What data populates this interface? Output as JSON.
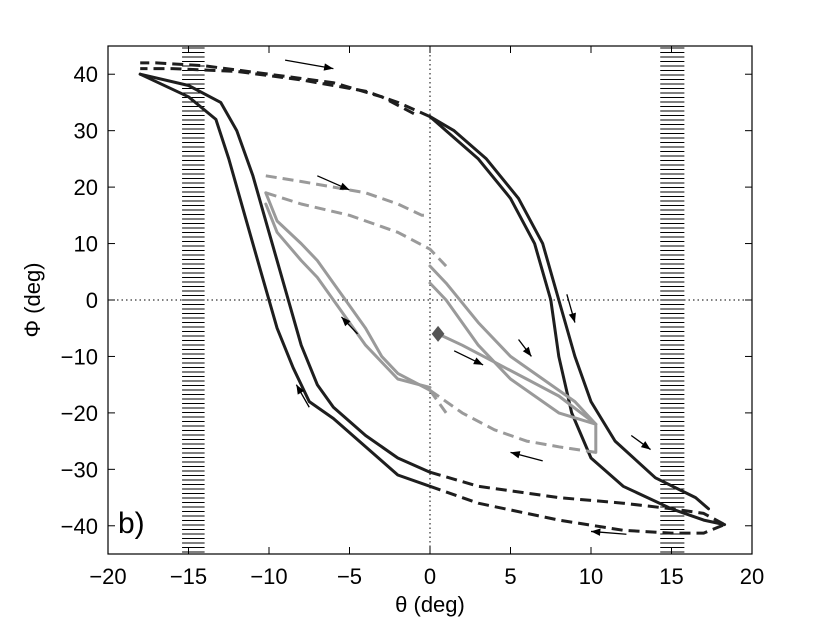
{
  "chart_data": {
    "type": "line",
    "title": "",
    "panel_label": "b)",
    "xlabel": "θ (deg)",
    "ylabel": "Φ (deg)",
    "xlim": [
      -20,
      20
    ],
    "ylim": [
      -45,
      45
    ],
    "xticks": [
      -20,
      -15,
      -10,
      -5,
      0,
      5,
      10,
      15,
      20
    ],
    "yticks": [
      40,
      30,
      20,
      10,
      0,
      -10,
      -20,
      -30,
      -40
    ],
    "xtick_labels": [
      "−20",
      "−15",
      "−10",
      "−5",
      "0",
      "5",
      "10",
      "15",
      "20"
    ],
    "ytick_labels": [
      "40",
      "30",
      "20",
      "10",
      "0",
      "−10",
      "−20",
      "−30",
      "−40"
    ],
    "zero_lines": true,
    "hatched_bands": [
      {
        "x_from": -15.4,
        "x_to": -14.0
      },
      {
        "x_from": 14.3,
        "x_to": 15.8
      }
    ],
    "colors": {
      "outer": "#1e1e1e",
      "inner": "#9a9a9a",
      "axis": "#000000"
    },
    "series": [
      {
        "name": "outer-loop-solid-a",
        "color": "#1e1e1e",
        "style": "solid",
        "points": [
          [
            -18,
            40
          ],
          [
            -15,
            38
          ],
          [
            -13,
            35
          ],
          [
            -12,
            30
          ],
          [
            -11,
            22
          ],
          [
            -10,
            12
          ],
          [
            -9,
            2
          ],
          [
            -8,
            -8
          ],
          [
            -7,
            -15
          ],
          [
            -6,
            -19
          ],
          [
            -4,
            -24
          ],
          [
            -2,
            -28
          ],
          [
            0,
            -30.5
          ]
        ]
      },
      {
        "name": "outer-loop-solid-b",
        "color": "#1e1e1e",
        "style": "solid",
        "points": [
          [
            -18,
            40
          ],
          [
            -15,
            36
          ],
          [
            -13.3,
            32
          ],
          [
            -12.5,
            25
          ],
          [
            -11.5,
            15
          ],
          [
            -10.5,
            5
          ],
          [
            -9.5,
            -5
          ],
          [
            -8.5,
            -12
          ],
          [
            -7.5,
            -18
          ],
          [
            -6,
            -21
          ],
          [
            -4,
            -26
          ],
          [
            -2,
            -31
          ],
          [
            0,
            -33
          ]
        ]
      },
      {
        "name": "outer-loop-dashed-bottom-a",
        "color": "#1e1e1e",
        "style": "dashed",
        "points": [
          [
            0,
            -30.5
          ],
          [
            3,
            -33
          ],
          [
            8,
            -35
          ],
          [
            12,
            -36
          ],
          [
            15,
            -37
          ],
          [
            17,
            -37.8
          ],
          [
            18.3,
            -39.8
          ]
        ]
      },
      {
        "name": "outer-loop-dashed-bottom-b",
        "color": "#1e1e1e",
        "style": "dashed",
        "points": [
          [
            0,
            -33
          ],
          [
            3,
            -36
          ],
          [
            8,
            -39
          ],
          [
            12,
            -40.8
          ],
          [
            15,
            -41.3
          ],
          [
            17,
            -41.3
          ],
          [
            18.3,
            -39.8
          ]
        ]
      },
      {
        "name": "outer-loop-solid-c",
        "color": "#1e1e1e",
        "style": "solid",
        "points": [
          [
            18.3,
            -39.8
          ],
          [
            17,
            -39
          ],
          [
            15,
            -37
          ],
          [
            12,
            -33
          ],
          [
            10,
            -28
          ],
          [
            8.8,
            -20
          ],
          [
            8,
            -10
          ],
          [
            7.5,
            0
          ],
          [
            6.5,
            10
          ],
          [
            5,
            18
          ],
          [
            3,
            25
          ],
          [
            1,
            30
          ],
          [
            0,
            32.5
          ]
        ]
      },
      {
        "name": "outer-loop-solid-d",
        "color": "#1e1e1e",
        "style": "solid",
        "points": [
          [
            17.3,
            -37
          ],
          [
            16.5,
            -35
          ],
          [
            14,
            -31.5
          ],
          [
            11.5,
            -25
          ],
          [
            10,
            -18
          ],
          [
            9,
            -10
          ],
          [
            8,
            0
          ],
          [
            7,
            10
          ],
          [
            5.5,
            18
          ],
          [
            3.5,
            25
          ],
          [
            1.5,
            30
          ],
          [
            0,
            32.5
          ]
        ]
      },
      {
        "name": "outer-loop-dashed-top-a",
        "color": "#1e1e1e",
        "style": "dashed",
        "points": [
          [
            0,
            32.5
          ],
          [
            -2,
            35
          ],
          [
            -4,
            37
          ],
          [
            -8,
            39
          ],
          [
            -12,
            40.5
          ],
          [
            -16,
            41
          ],
          [
            -18,
            41
          ]
        ]
      },
      {
        "name": "outer-loop-dashed-top-b",
        "color": "#1e1e1e",
        "style": "dashed",
        "points": [
          [
            -1,
            33
          ],
          [
            -3,
            36
          ],
          [
            -6,
            38.5
          ],
          [
            -10,
            40
          ],
          [
            -14,
            41.5
          ],
          [
            -17,
            42
          ],
          [
            -18,
            42
          ]
        ]
      },
      {
        "name": "inner-loop-dashed-top-a",
        "color": "#9a9a9a",
        "style": "dashed",
        "points": [
          [
            -10.2,
            22
          ],
          [
            -8,
            21
          ],
          [
            -6,
            20
          ],
          [
            -4,
            19
          ],
          [
            -2,
            17
          ],
          [
            -0.5,
            15
          ],
          [
            0,
            15
          ]
        ]
      },
      {
        "name": "inner-loop-dashed-top-b",
        "color": "#9a9a9a",
        "style": "dashed",
        "points": [
          [
            -10.2,
            19
          ],
          [
            -8,
            17
          ],
          [
            -5,
            15
          ],
          [
            -2,
            12
          ],
          [
            0,
            9
          ],
          [
            1,
            6
          ]
        ]
      },
      {
        "name": "inner-loop-solid-a",
        "color": "#9a9a9a",
        "style": "solid",
        "points": [
          [
            -10.2,
            19
          ],
          [
            -9.5,
            14
          ],
          [
            -8,
            10
          ],
          [
            -7,
            7
          ],
          [
            -6,
            3
          ],
          [
            -5,
            -1
          ],
          [
            -4,
            -5
          ],
          [
            -3,
            -10
          ],
          [
            -2,
            -13
          ],
          [
            0,
            -16
          ]
        ]
      },
      {
        "name": "inner-loop-solid-b",
        "color": "#9a9a9a",
        "style": "solid",
        "points": [
          [
            -10.2,
            17
          ],
          [
            -9.5,
            12
          ],
          [
            -8,
            7
          ],
          [
            -7,
            4
          ],
          [
            -6,
            0
          ],
          [
            -5,
            -4
          ],
          [
            -4,
            -8
          ],
          [
            -3,
            -11
          ],
          [
            -2,
            -14
          ],
          [
            0,
            -15.5
          ]
        ]
      },
      {
        "name": "inner-loop-dashed-bottom-a",
        "color": "#9a9a9a",
        "style": "dashed",
        "points": [
          [
            0,
            -16
          ],
          [
            2,
            -20
          ],
          [
            4,
            -23
          ],
          [
            6,
            -25
          ],
          [
            8,
            -26
          ],
          [
            10.3,
            -27
          ]
        ]
      },
      {
        "name": "inner-loop-dashed-bottom-b",
        "color": "#9a9a9a",
        "style": "dashed",
        "points": [
          [
            0,
            -16
          ],
          [
            0.5,
            -18
          ],
          [
            1,
            -20
          ]
        ]
      },
      {
        "name": "inner-loop-solid-c",
        "color": "#9a9a9a",
        "style": "solid",
        "points": [
          [
            10.3,
            -27
          ],
          [
            10.3,
            -22
          ],
          [
            8,
            -20
          ],
          [
            5,
            -14
          ],
          [
            3,
            -8
          ],
          [
            1,
            0
          ],
          [
            0,
            3
          ]
        ]
      },
      {
        "name": "inner-loop-solid-d",
        "color": "#9a9a9a",
        "style": "solid",
        "points": [
          [
            0,
            6
          ],
          [
            1,
            3
          ],
          [
            3,
            -4
          ],
          [
            5,
            -10
          ],
          [
            7,
            -14
          ],
          [
            9,
            -18
          ],
          [
            10.3,
            -22
          ]
        ]
      },
      {
        "name": "inner-start-trace",
        "color": "#9a9a9a",
        "style": "solid",
        "points": [
          [
            0.5,
            -6
          ],
          [
            2,
            -8
          ],
          [
            4,
            -11
          ],
          [
            6,
            -14
          ],
          [
            8,
            -17
          ],
          [
            10.3,
            -22
          ]
        ]
      }
    ],
    "start_marker": {
      "x": 0.5,
      "y": -6,
      "shape": "diamond",
      "color": "#555555"
    },
    "arrows": [
      {
        "x1": -9,
        "y1": 42.5,
        "x2": -6,
        "y2": 41,
        "color": "#000000"
      },
      {
        "x1": -7,
        "y1": 22,
        "x2": -5,
        "y2": 19.5,
        "color": "#000000"
      },
      {
        "x1": 8.5,
        "y1": 1,
        "x2": 9,
        "y2": -4,
        "color": "#000000"
      },
      {
        "x1": 5.5,
        "y1": -7,
        "x2": 6.3,
        "y2": -10,
        "color": "#000000"
      },
      {
        "x1": 1.5,
        "y1": -9,
        "x2": 3.3,
        "y2": -11.5,
        "color": "#000000"
      },
      {
        "x1": 12.5,
        "y1": -24,
        "x2": 13.7,
        "y2": -26.5,
        "color": "#000000"
      },
      {
        "x1": 7,
        "y1": -28.5,
        "x2": 5,
        "y2": -27,
        "color": "#000000"
      },
      {
        "x1": 12.2,
        "y1": -41.5,
        "x2": 10,
        "y2": -41,
        "color": "#000000"
      },
      {
        "x1": -4.5,
        "y1": -6,
        "x2": -5.5,
        "y2": -3,
        "color": "#000000"
      },
      {
        "x1": -7.5,
        "y1": -19,
        "x2": -8.3,
        "y2": -15,
        "color": "#000000"
      }
    ]
  }
}
